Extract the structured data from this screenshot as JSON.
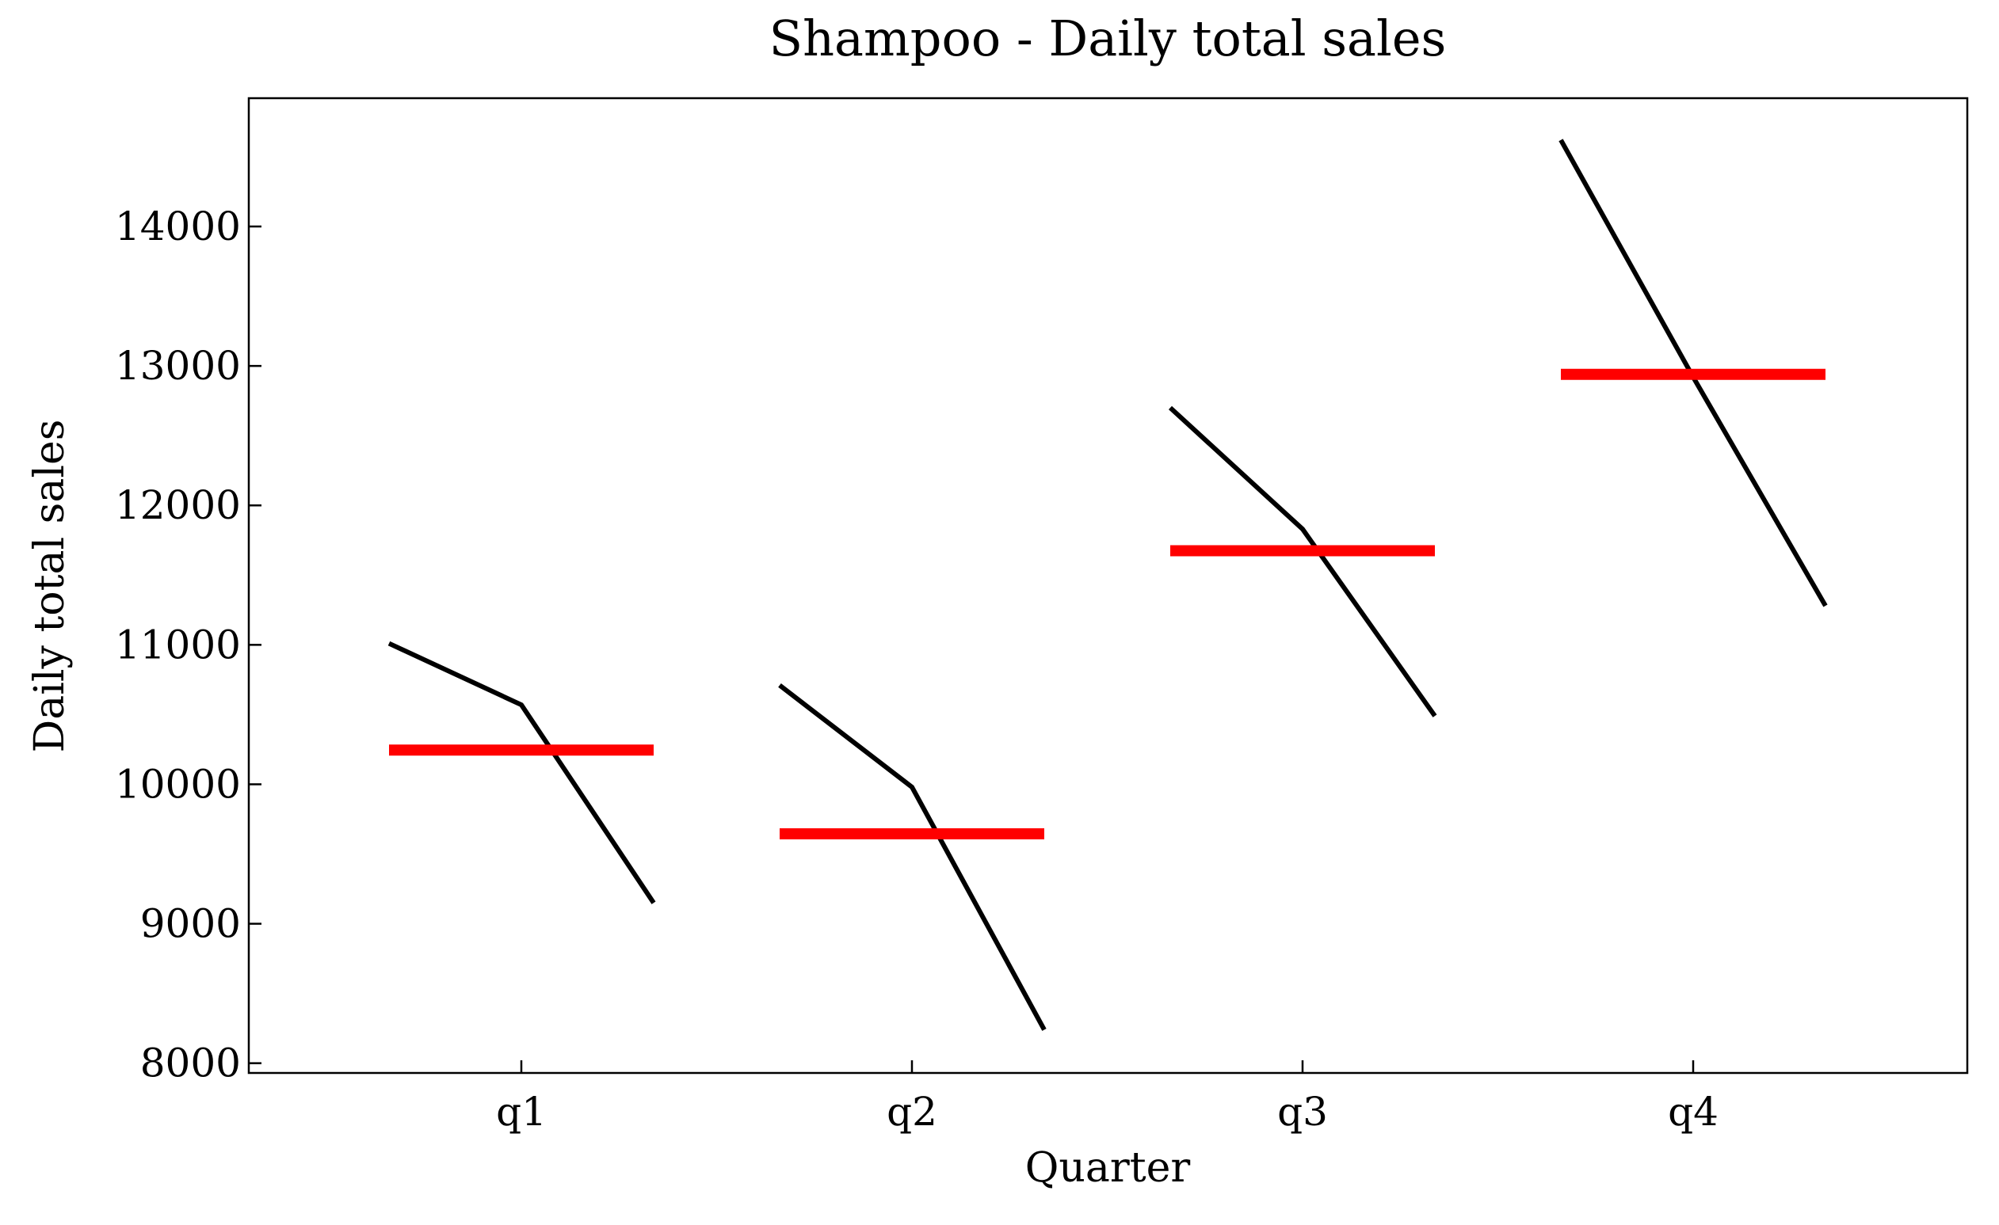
{
  "chart_data": {
    "type": "line",
    "title": "Shampoo - Daily total sales",
    "xlabel": "Quarter",
    "ylabel": "Daily total sales",
    "categories": [
      "q1",
      "q2",
      "q3",
      "q4"
    ],
    "values": [
      [
        11010,
        10570,
        9150
      ],
      [
        10710,
        9980,
        8240
      ],
      [
        12700,
        11830,
        10490
      ],
      [
        14620,
        12920,
        11280
      ]
    ],
    "means": [
      10245,
      9645,
      11675,
      12940
    ],
    "color": "#000000",
    "mean_color": "#ff0000",
    "ylim": [
      7930,
      14920
    ],
    "yticks": [
      8000,
      9000,
      10000,
      11000,
      12000,
      13000,
      14000
    ]
  }
}
